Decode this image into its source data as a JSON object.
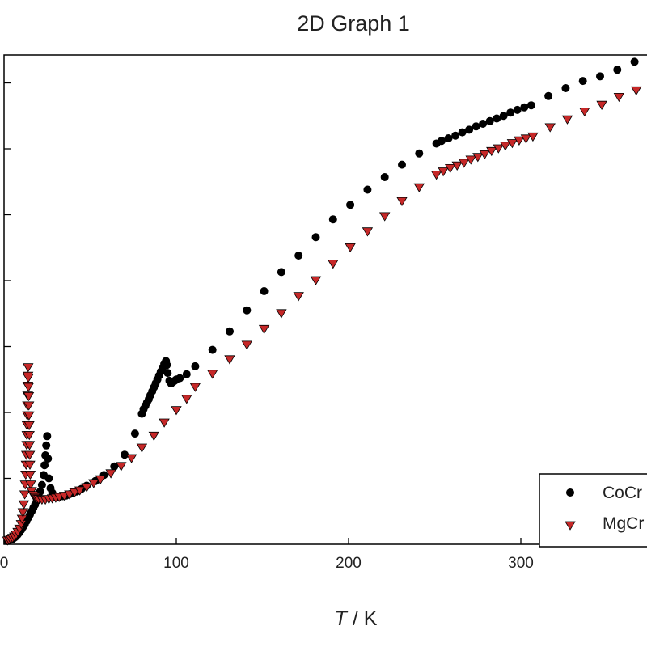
{
  "chart_data": {
    "type": "scatter",
    "title": "2D Graph 1",
    "xlabel_var": "T",
    "xlabel_unit": " / K",
    "xlim": [
      0,
      380
    ],
    "ylim": [
      0,
      7.6
    ],
    "xticks": [
      0,
      100,
      200,
      300
    ],
    "xtick_labels": [
      "0",
      "100",
      "200",
      "300"
    ],
    "yticks": [
      1,
      2,
      3,
      4,
      5,
      6,
      7
    ],
    "legend_position": "bottom-right",
    "series": [
      {
        "name": "CoCr",
        "marker": "circle",
        "color": "#000000",
        "points": [
          [
            2,
            0.05
          ],
          [
            3,
            0.06
          ],
          [
            4,
            0.07
          ],
          [
            5,
            0.08
          ],
          [
            6,
            0.1
          ],
          [
            7,
            0.12
          ],
          [
            8,
            0.15
          ],
          [
            9,
            0.18
          ],
          [
            10,
            0.22
          ],
          [
            11,
            0.26
          ],
          [
            12,
            0.3
          ],
          [
            13,
            0.35
          ],
          [
            14,
            0.4
          ],
          [
            15,
            0.45
          ],
          [
            16,
            0.5
          ],
          [
            17,
            0.55
          ],
          [
            18,
            0.6
          ],
          [
            19,
            0.66
          ],
          [
            20,
            0.73
          ],
          [
            21,
            0.8
          ],
          [
            22,
            0.9
          ],
          [
            23,
            1.05
          ],
          [
            23.5,
            1.2
          ],
          [
            24,
            1.35
          ],
          [
            24.5,
            1.5
          ],
          [
            25,
            1.64
          ],
          [
            25.5,
            1.3
          ],
          [
            26,
            1.0
          ],
          [
            27,
            0.85
          ],
          [
            28,
            0.78
          ],
          [
            29,
            0.74
          ],
          [
            30,
            0.72
          ],
          [
            32,
            0.72
          ],
          [
            34,
            0.73
          ],
          [
            36,
            0.74
          ],
          [
            38,
            0.76
          ],
          [
            40,
            0.78
          ],
          [
            42,
            0.8
          ],
          [
            45,
            0.84
          ],
          [
            48,
            0.89
          ],
          [
            53,
            0.96
          ],
          [
            58,
            1.05
          ],
          [
            64,
            1.18
          ],
          [
            70,
            1.36
          ],
          [
            76,
            1.68
          ],
          [
            80,
            1.98
          ],
          [
            81,
            2.05
          ],
          [
            82,
            2.1
          ],
          [
            83,
            2.15
          ],
          [
            84,
            2.2
          ],
          [
            85,
            2.26
          ],
          [
            86,
            2.32
          ],
          [
            87,
            2.38
          ],
          [
            88,
            2.44
          ],
          [
            89,
            2.5
          ],
          [
            90,
            2.56
          ],
          [
            91,
            2.62
          ],
          [
            92,
            2.68
          ],
          [
            93,
            2.74
          ],
          [
            94,
            2.78
          ],
          [
            94.5,
            2.72
          ],
          [
            95,
            2.6
          ],
          [
            96,
            2.48
          ],
          [
            97,
            2.44
          ],
          [
            98,
            2.46
          ],
          [
            99,
            2.48
          ],
          [
            100,
            2.5
          ],
          [
            102,
            2.52
          ],
          [
            106,
            2.58
          ],
          [
            111,
            2.7
          ],
          [
            121,
            2.95
          ],
          [
            131,
            3.23
          ],
          [
            141,
            3.55
          ],
          [
            151,
            3.84
          ],
          [
            161,
            4.13
          ],
          [
            171,
            4.38
          ],
          [
            181,
            4.66
          ],
          [
            191,
            4.93
          ],
          [
            201,
            5.15
          ],
          [
            211,
            5.38
          ],
          [
            221,
            5.57
          ],
          [
            231,
            5.76
          ],
          [
            241,
            5.93
          ],
          [
            251,
            6.08
          ],
          [
            254,
            6.12
          ],
          [
            258,
            6.16
          ],
          [
            262,
            6.2
          ],
          [
            266,
            6.25
          ],
          [
            270,
            6.29
          ],
          [
            274,
            6.34
          ],
          [
            278,
            6.38
          ],
          [
            282,
            6.42
          ],
          [
            286,
            6.46
          ],
          [
            290,
            6.5
          ],
          [
            294,
            6.55
          ],
          [
            298,
            6.59
          ],
          [
            302,
            6.63
          ],
          [
            306,
            6.66
          ],
          [
            316,
            6.8
          ],
          [
            326,
            6.92
          ],
          [
            336,
            7.03
          ],
          [
            346,
            7.1
          ],
          [
            356,
            7.2
          ],
          [
            366,
            7.32
          ]
        ]
      },
      {
        "name": "MgCr",
        "marker": "triangle-down",
        "color": "#c62828",
        "points": [
          [
            2,
            0.05
          ],
          [
            3,
            0.06
          ],
          [
            4,
            0.07
          ],
          [
            5,
            0.09
          ],
          [
            6,
            0.11
          ],
          [
            7,
            0.14
          ],
          [
            8,
            0.18
          ],
          [
            9,
            0.23
          ],
          [
            10,
            0.3
          ],
          [
            10.5,
            0.38
          ],
          [
            11,
            0.48
          ],
          [
            11.5,
            0.6
          ],
          [
            12,
            0.75
          ],
          [
            12.3,
            0.9
          ],
          [
            12.6,
            1.05
          ],
          [
            12.8,
            1.2
          ],
          [
            13,
            1.35
          ],
          [
            13.2,
            1.5
          ],
          [
            13.3,
            1.65
          ],
          [
            13.4,
            1.8
          ],
          [
            13.5,
            1.95
          ],
          [
            13.6,
            2.1
          ],
          [
            13.7,
            2.25
          ],
          [
            13.8,
            2.4
          ],
          [
            13.9,
            2.55
          ],
          [
            14,
            2.68
          ],
          [
            14.1,
            2.52
          ],
          [
            14.2,
            2.38
          ],
          [
            14.3,
            2.24
          ],
          [
            14.4,
            2.1
          ],
          [
            14.5,
            1.95
          ],
          [
            14.6,
            1.8
          ],
          [
            14.7,
            1.65
          ],
          [
            14.8,
            1.5
          ],
          [
            14.9,
            1.35
          ],
          [
            15,
            1.2
          ],
          [
            15.2,
            1.05
          ],
          [
            15.5,
            0.9
          ],
          [
            16,
            0.8
          ],
          [
            17,
            0.74
          ],
          [
            18,
            0.71
          ],
          [
            19,
            0.69
          ],
          [
            20,
            0.68
          ],
          [
            22,
            0.67
          ],
          [
            24,
            0.67
          ],
          [
            26,
            0.68
          ],
          [
            28,
            0.69
          ],
          [
            30,
            0.7
          ],
          [
            32,
            0.71
          ],
          [
            35,
            0.73
          ],
          [
            38,
            0.75
          ],
          [
            41,
            0.78
          ],
          [
            44,
            0.81
          ],
          [
            48,
            0.86
          ],
          [
            52,
            0.92
          ],
          [
            56,
            0.98
          ],
          [
            62,
            1.07
          ],
          [
            68,
            1.18
          ],
          [
            74,
            1.3
          ],
          [
            80,
            1.46
          ],
          [
            87,
            1.64
          ],
          [
            93,
            1.84
          ],
          [
            100,
            2.03
          ],
          [
            106,
            2.2
          ],
          [
            111,
            2.38
          ],
          [
            121,
            2.58
          ],
          [
            131,
            2.8
          ],
          [
            141,
            3.02
          ],
          [
            151,
            3.26
          ],
          [
            161,
            3.5
          ],
          [
            171,
            3.76
          ],
          [
            181,
            4.0
          ],
          [
            191,
            4.25
          ],
          [
            201,
            4.5
          ],
          [
            211,
            4.74
          ],
          [
            221,
            4.97
          ],
          [
            231,
            5.2
          ],
          [
            241,
            5.41
          ],
          [
            251,
            5.6
          ],
          [
            255,
            5.65
          ],
          [
            259,
            5.7
          ],
          [
            263,
            5.74
          ],
          [
            267,
            5.78
          ],
          [
            271,
            5.83
          ],
          [
            275,
            5.87
          ],
          [
            279,
            5.91
          ],
          [
            283,
            5.96
          ],
          [
            287,
            6.0
          ],
          [
            291,
            6.04
          ],
          [
            295,
            6.08
          ],
          [
            299,
            6.12
          ],
          [
            303,
            6.15
          ],
          [
            307,
            6.18
          ],
          [
            317,
            6.32
          ],
          [
            327,
            6.44
          ],
          [
            337,
            6.56
          ],
          [
            347,
            6.66
          ],
          [
            357,
            6.78
          ],
          [
            367,
            6.88
          ]
        ]
      }
    ]
  }
}
